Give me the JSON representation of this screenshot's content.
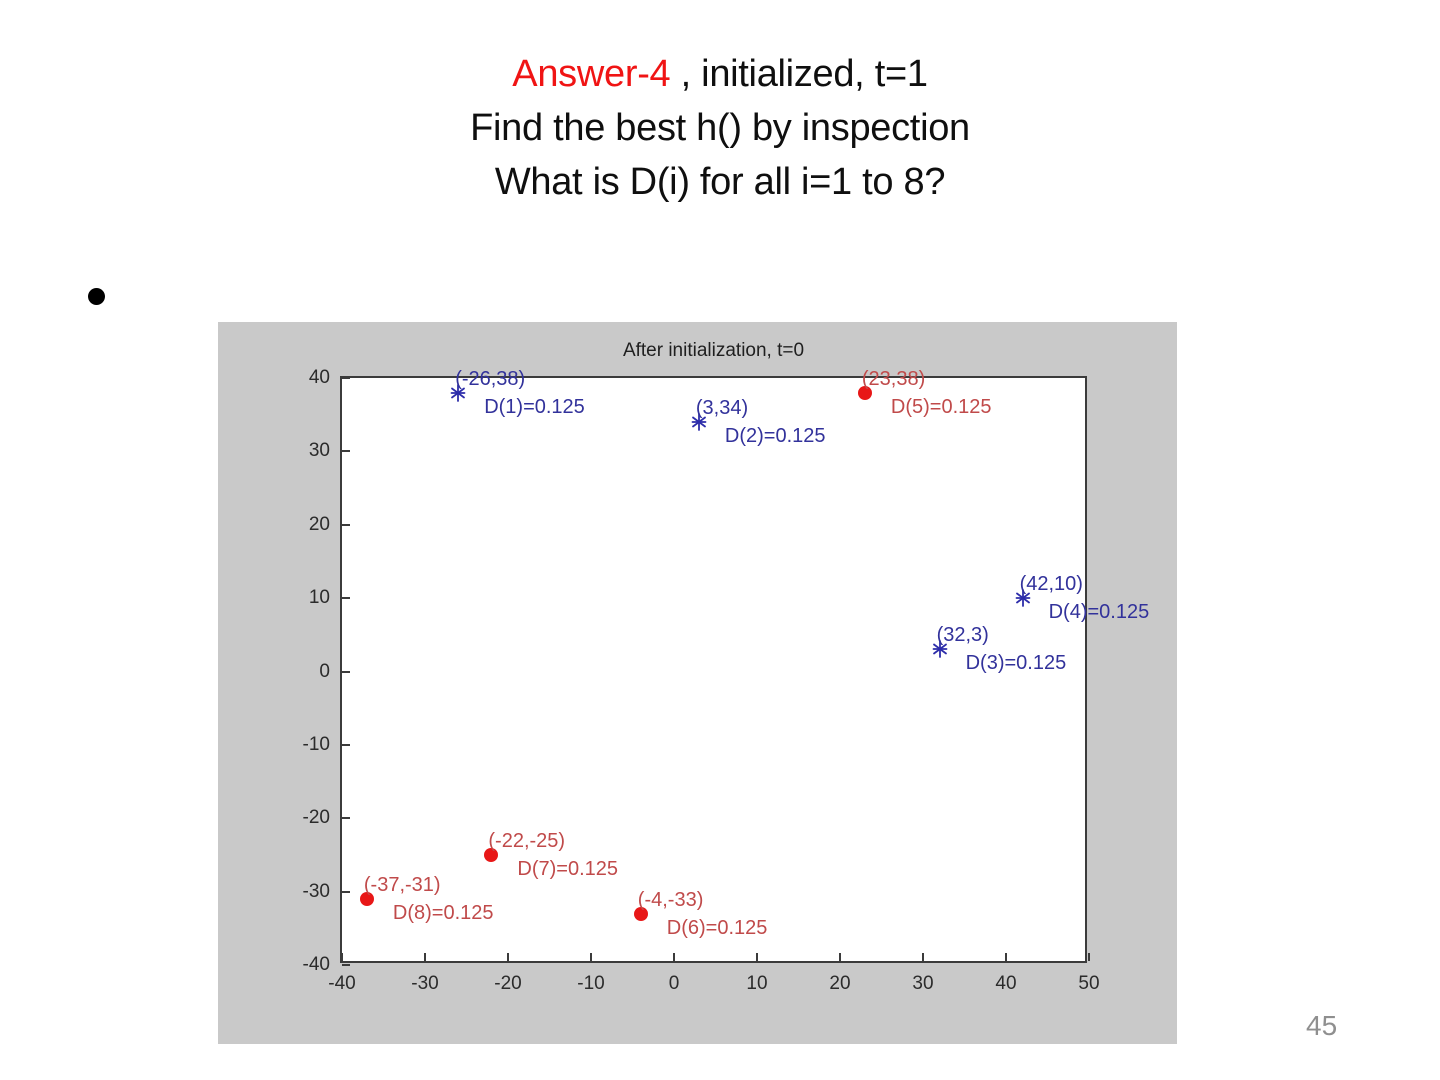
{
  "slide": {
    "title": {
      "line1_red": "Answer-4",
      "line1_rest": " , initialized, t=1",
      "line2": "Find the best h() by inspection",
      "line3": "What is D(i) for all i=1 to 8?"
    },
    "page_number": "45"
  },
  "figure": {
    "panel_bg_color": "#c9c9c9",
    "plot_bg_color": "#ffffff",
    "axis_color": "#3b3b3b"
  },
  "chart_data": {
    "type": "scatter",
    "title": "After initialization, t=0",
    "xlabel": "",
    "ylabel": "",
    "xlim": [
      -40,
      50
    ],
    "ylim": [
      -40,
      40
    ],
    "x_ticks": [
      -40,
      -30,
      -20,
      -10,
      0,
      10,
      20,
      30,
      40,
      50
    ],
    "y_ticks": [
      40,
      30,
      20,
      10,
      0,
      -10,
      -20,
      -30,
      -40
    ],
    "grid": false,
    "legend": "none",
    "series": [
      {
        "name": "blue-asterisk-class",
        "marker": "asterisk",
        "marker_color": "#2d2daa",
        "text_color": "#32329b",
        "points": [
          {
            "x": -26,
            "y": 38,
            "coord_label": "(-26,38)",
            "weight_label": "D(1)=0.125"
          },
          {
            "x": 3,
            "y": 34,
            "coord_label": "(3,34)",
            "weight_label": "D(2)=0.125"
          },
          {
            "x": 32,
            "y": 3,
            "coord_label": "(32,3)",
            "weight_label": "D(3)=0.125"
          },
          {
            "x": 42,
            "y": 10,
            "coord_label": "(42,10)",
            "weight_label": "D(4)=0.125"
          }
        ]
      },
      {
        "name": "red-dot-class",
        "marker": "dot",
        "marker_color": "#e81717",
        "text_color": "#c04a4a",
        "points": [
          {
            "x": 23,
            "y": 38,
            "coord_label": "(23,38)",
            "weight_label": "D(5)=0.125"
          },
          {
            "x": -4,
            "y": -33,
            "coord_label": "(-4,-33)",
            "weight_label": "D(6)=0.125"
          },
          {
            "x": -22,
            "y": -25,
            "coord_label": "(-22,-25)",
            "weight_label": "D(7)=0.125"
          },
          {
            "x": -37,
            "y": -31,
            "coord_label": "(-37,-31)",
            "weight_label": "D(8)=0.125"
          }
        ]
      }
    ]
  }
}
